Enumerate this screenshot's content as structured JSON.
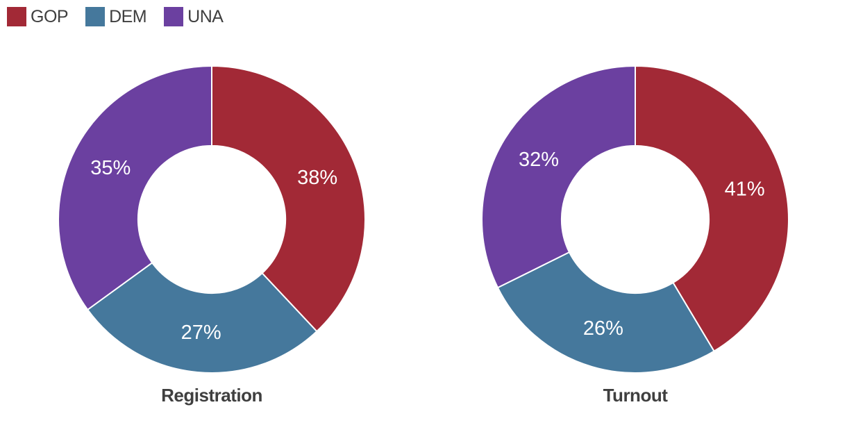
{
  "legend": {
    "items": [
      {
        "label": "GOP",
        "color": "#A22936"
      },
      {
        "label": "DEM",
        "color": "#45789C"
      },
      {
        "label": "UNA",
        "color": "#6B40A0"
      }
    ]
  },
  "chart_data": [
    {
      "type": "pie",
      "subtype": "donut",
      "title": "Registration",
      "categories": [
        "GOP",
        "DEM",
        "UNA"
      ],
      "values": [
        38,
        27,
        35
      ],
      "labels": [
        "38%",
        "27%",
        "35%"
      ],
      "colors": [
        "#A22936",
        "#45789C",
        "#6B40A0"
      ],
      "start_angle_deg": 0,
      "direction": "clockwise",
      "inner_radius_ratio": 0.48,
      "legend_position": "top-left"
    },
    {
      "type": "pie",
      "subtype": "donut",
      "title": "Turnout",
      "categories": [
        "GOP",
        "DEM",
        "UNA"
      ],
      "values": [
        41,
        26,
        32
      ],
      "labels": [
        "41%",
        "26%",
        "32%"
      ],
      "colors": [
        "#A22936",
        "#45789C",
        "#6B40A0"
      ],
      "start_angle_deg": 0,
      "direction": "clockwise",
      "inner_radius_ratio": 0.48,
      "legend_position": "top-left"
    }
  ],
  "styles": {
    "background": "#FFFFFF",
    "slice_label_color": "#FFFFFF",
    "slice_border_color": "#FFFFFF",
    "title_color": "#3F3F3F",
    "legend_text_color": "#3F3F3F"
  }
}
